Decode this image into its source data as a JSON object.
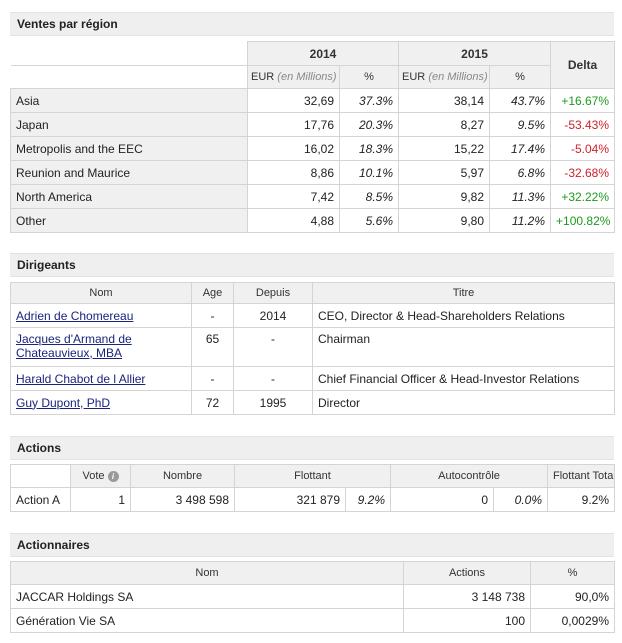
{
  "sales": {
    "title": "Ventes par région",
    "year1": "2014",
    "year2": "2015",
    "delta_label": "Delta",
    "unit_main": "EUR",
    "unit_sub": "(en Millions)",
    "pct_label": "%",
    "rows": [
      {
        "region": "Asia",
        "v1": "32,69",
        "p1": "37.3%",
        "v2": "38,14",
        "p2": "43.7%",
        "delta": "+16.67%",
        "trend": "up"
      },
      {
        "region": "Japan",
        "v1": "17,76",
        "p1": "20.3%",
        "v2": "8,27",
        "p2": "9.5%",
        "delta": "-53.43%",
        "trend": "down"
      },
      {
        "region": "Metropolis and the EEC",
        "v1": "16,02",
        "p1": "18.3%",
        "v2": "15,22",
        "p2": "17.4%",
        "delta": "-5.04%",
        "trend": "down"
      },
      {
        "region": "Reunion and Maurice",
        "v1": "8,86",
        "p1": "10.1%",
        "v2": "5,97",
        "p2": "6.8%",
        "delta": "-32.68%",
        "trend": "down"
      },
      {
        "region": "North America",
        "v1": "7,42",
        "p1": "8.5%",
        "v2": "9,82",
        "p2": "11.3%",
        "delta": "+32.22%",
        "trend": "up"
      },
      {
        "region": "Other",
        "v1": "4,88",
        "p1": "5.6%",
        "v2": "9,80",
        "p2": "11.2%",
        "delta": "+100.82%",
        "trend": "up"
      }
    ],
    "colors": {
      "up": "#1e9a1e",
      "down": "#d0202a"
    }
  },
  "management": {
    "title": "Dirigeants",
    "headers": {
      "name": "Nom",
      "age": "Age",
      "since": "Depuis",
      "title": "Titre"
    },
    "rows": [
      {
        "name": "Adrien de Chomereau",
        "age": "-",
        "since": "2014",
        "role": "CEO, Director & Head-Shareholders Relations"
      },
      {
        "name_line1": "Jacques d'Armand de",
        "name_line2": "Chateauvieux, MBA",
        "age": "65",
        "since": "-",
        "role": "Chairman"
      },
      {
        "name": "Harald Chabot de l Allier",
        "age": "-",
        "since": "-",
        "role": "Chief Financial Officer & Head-Investor Relations"
      },
      {
        "name": "Guy Dupont, PhD",
        "age": "72",
        "since": "1995",
        "role": "Director"
      }
    ]
  },
  "shares": {
    "title": "Actions",
    "headers": {
      "vote": "Vote",
      "number": "Nombre",
      "float": "Flottant",
      "treasury": "Autocontrôle",
      "float_total": "Flottant Total"
    },
    "rows": [
      {
        "name": "Action A",
        "vote": "1",
        "number": "3 498 598",
        "float": "321 879",
        "float_pct": "9.2%",
        "treasury": "0",
        "treasury_pct": "0.0%",
        "float_total": "9.2%"
      }
    ]
  },
  "shareholders": {
    "title": "Actionnaires",
    "headers": {
      "name": "Nom",
      "shares": "Actions",
      "pct": "%"
    },
    "rows": [
      {
        "name": "JACCAR Holdings SA",
        "shares": "3 148 738",
        "pct": "90,0%"
      },
      {
        "name": "Génération Vie SA",
        "shares": "100",
        "pct": "0,0029%"
      }
    ]
  }
}
